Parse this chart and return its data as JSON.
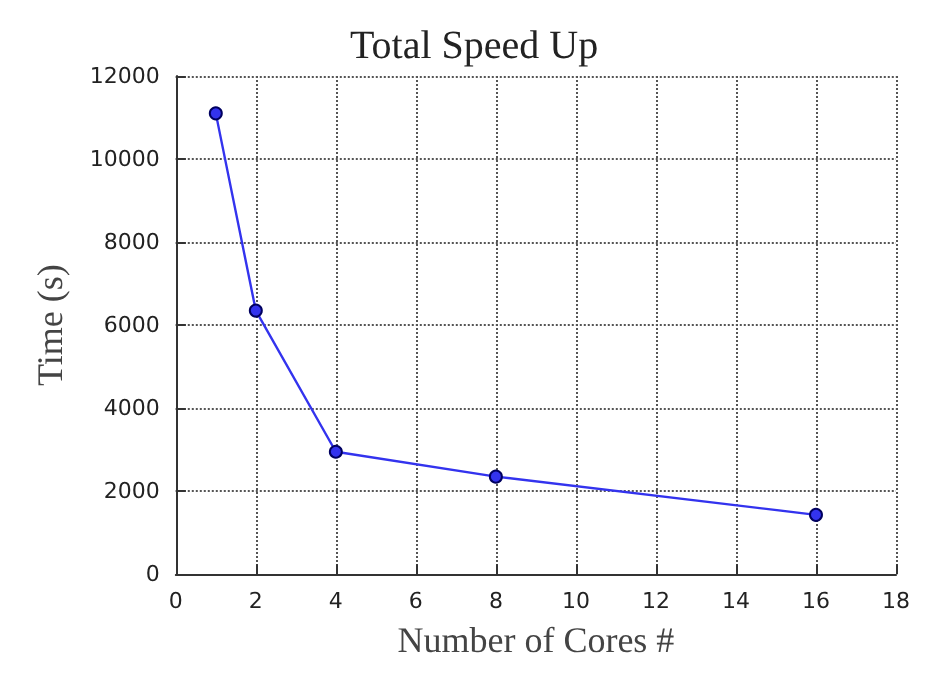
{
  "chart_data": {
    "type": "line",
    "title": "Total Speed Up",
    "xlabel": "Number of Cores #",
    "ylabel": "Time (s)",
    "x": [
      1,
      2,
      4,
      8,
      16
    ],
    "series": [
      {
        "color": "#3333ee",
        "values": [
          11100,
          6350,
          2950,
          2350,
          1430
        ]
      }
    ],
    "xlim": [
      0,
      18
    ],
    "xticks": [
      0,
      2,
      4,
      6,
      8,
      10,
      12,
      14,
      16,
      18
    ],
    "ylim": [
      0,
      12000
    ],
    "yticks": [
      0,
      2000,
      4000,
      6000,
      8000,
      10000,
      12000
    ],
    "grid": true,
    "marker": "circle",
    "line_style": "solid"
  }
}
